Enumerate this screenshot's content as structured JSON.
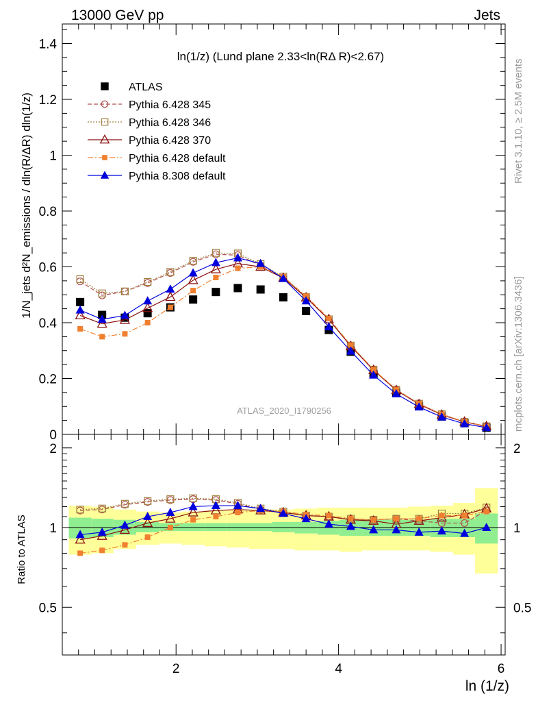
{
  "header": {
    "left": "13000 GeV pp",
    "right": "Jets"
  },
  "side_labels": {
    "rivet": "Rivet 3.1.10, ≥ 2.5M events",
    "mcplots": "mcplots.cern.ch [arXiv:1306.3436]"
  },
  "plot_title": "ln(1/z) (Lund plane 2.33<ln(RΔ R)<2.67)",
  "watermark": "ATLAS_2020_I1790256",
  "ylabel_main": "1/N_jets d²N_emissions / dln(R/ΔR) dln(1/z)",
  "ylabel_ratio": "Ratio to ATLAS",
  "xlabel": "ln (1/z)",
  "legend": [
    {
      "label": "ATLAS",
      "key": "atlas"
    },
    {
      "label": "Pythia 6.428 345",
      "key": "p345"
    },
    {
      "label": "Pythia 6.428 346",
      "key": "p346"
    },
    {
      "label": "Pythia 6.428 370",
      "key": "p370"
    },
    {
      "label": "Pythia 6.428 default",
      "key": "p6def"
    },
    {
      "label": "Pythia 8.308 default",
      "key": "p8def"
    }
  ],
  "colors": {
    "atlas": "#000000",
    "p345": "#b05050",
    "p346": "#a08040",
    "p370": "#8b1010",
    "p6def": "#f08030",
    "p8def": "#0000dd",
    "band_inner": "#90ee90",
    "band_outer": "#ffff99"
  },
  "chart_data": [
    {
      "type": "scatter",
      "panel": "main",
      "xlim": [
        0.6,
        6.05
      ],
      "ylim": [
        0,
        1.47
      ],
      "xticks": [
        2,
        4,
        6
      ],
      "yticks": [
        0,
        0.2,
        0.4,
        0.6,
        0.8,
        1,
        1.2,
        1.4
      ],
      "ytick_labels": [
        "0",
        "0.2",
        "0.4",
        "0.6",
        "0.8",
        "1",
        "1.2",
        "1.4"
      ],
      "x": [
        0.82,
        1.09,
        1.37,
        1.65,
        1.93,
        2.21,
        2.49,
        2.76,
        3.04,
        3.32,
        3.6,
        3.88,
        4.15,
        4.43,
        4.71,
        4.99,
        5.27,
        5.55,
        5.82
      ],
      "series": [
        {
          "name": "ATLAS",
          "key": "atlas",
          "values": [
            0.474,
            0.428,
            0.418,
            0.434,
            0.455,
            0.483,
            0.51,
            0.524,
            0.519,
            0.491,
            0.442,
            0.374,
            0.296,
            0.216,
            0.148,
            0.102,
            0.064,
            0.04,
            0.024
          ]
        },
        {
          "name": "Pythia 6.428 345",
          "key": "p345",
          "values": [
            0.548,
            0.498,
            0.512,
            0.542,
            0.578,
            0.618,
            0.645,
            0.642,
            0.605,
            0.561,
            0.491,
            0.41,
            0.318,
            0.232,
            0.16,
            0.109,
            0.07,
            0.044,
            0.028
          ]
        },
        {
          "name": "Pythia 6.428 346",
          "key": "p346",
          "values": [
            0.556,
            0.505,
            0.512,
            0.546,
            0.582,
            0.622,
            0.65,
            0.648,
            0.61,
            0.565,
            0.492,
            0.412,
            0.318,
            0.232,
            0.16,
            0.11,
            0.072,
            0.045,
            0.029
          ]
        },
        {
          "name": "Pythia 6.428 370",
          "key": "p370",
          "values": [
            0.426,
            0.396,
            0.41,
            0.452,
            0.492,
            0.552,
            0.591,
            0.612,
            0.6,
            0.56,
            0.49,
            0.412,
            0.316,
            0.23,
            0.158,
            0.108,
            0.07,
            0.045,
            0.029
          ]
        },
        {
          "name": "Pythia 6.428 default",
          "key": "p6def",
          "values": [
            0.378,
            0.35,
            0.36,
            0.4,
            0.455,
            0.515,
            0.562,
            0.595,
            0.6,
            0.565,
            0.495,
            0.415,
            0.32,
            0.232,
            0.16,
            0.11,
            0.072,
            0.045,
            0.028
          ]
        },
        {
          "name": "Pythia 8.308 default",
          "key": "p8def",
          "values": [
            0.445,
            0.412,
            0.426,
            0.478,
            0.52,
            0.578,
            0.615,
            0.632,
            0.612,
            0.558,
            0.478,
            0.385,
            0.298,
            0.212,
            0.145,
            0.098,
            0.062,
            0.038,
            0.024
          ]
        }
      ]
    },
    {
      "type": "line",
      "panel": "ratio",
      "xlim": [
        0.6,
        6.05
      ],
      "ylim": [
        0.33,
        2.25
      ],
      "yscale": "log",
      "yticks": [
        0.5,
        1,
        2
      ],
      "ytick_labels": [
        "0.5",
        "1",
        "2"
      ],
      "x": [
        0.82,
        1.09,
        1.37,
        1.65,
        1.93,
        2.21,
        2.49,
        2.76,
        3.04,
        3.32,
        3.6,
        3.88,
        4.15,
        4.43,
        4.71,
        4.99,
        5.27,
        5.55,
        5.82
      ],
      "bins": [
        0.68,
        0.96,
        1.23,
        1.51,
        1.79,
        2.07,
        2.35,
        2.62,
        2.9,
        3.18,
        3.46,
        3.74,
        4.01,
        4.29,
        4.57,
        4.85,
        5.13,
        5.41,
        5.68,
        5.96
      ],
      "band_inner_lo": [
        0.91,
        0.92,
        0.94,
        0.96,
        0.97,
        0.97,
        0.97,
        0.97,
        0.97,
        0.96,
        0.95,
        0.94,
        0.93,
        0.93,
        0.93,
        0.93,
        0.92,
        0.92,
        0.87
      ],
      "band_inner_hi": [
        1.09,
        1.08,
        1.07,
        1.05,
        1.04,
        1.04,
        1.04,
        1.04,
        1.04,
        1.05,
        1.05,
        1.06,
        1.07,
        1.07,
        1.07,
        1.07,
        1.08,
        1.08,
        1.13
      ],
      "band_outer_lo": [
        0.79,
        0.8,
        0.83,
        0.86,
        0.87,
        0.86,
        0.85,
        0.84,
        0.83,
        0.83,
        0.82,
        0.82,
        0.81,
        0.82,
        0.82,
        0.82,
        0.81,
        0.79,
        0.67
      ],
      "band_outer_hi": [
        1.21,
        1.2,
        1.17,
        1.15,
        1.14,
        1.15,
        1.16,
        1.17,
        1.17,
        1.17,
        1.18,
        1.19,
        1.19,
        1.19,
        1.19,
        1.2,
        1.21,
        1.24,
        1.41
      ],
      "series": [
        {
          "name": "Pythia 6.428 345",
          "key": "p345",
          "values": [
            1.16,
            1.17,
            1.22,
            1.25,
            1.27,
            1.28,
            1.27,
            1.23,
            1.17,
            1.14,
            1.11,
            1.1,
            1.07,
            1.07,
            1.08,
            1.06,
            1.04,
            1.04,
            1.16
          ]
        },
        {
          "name": "Pythia 6.428 346",
          "key": "p346",
          "values": [
            1.17,
            1.18,
            1.23,
            1.26,
            1.28,
            1.29,
            1.28,
            1.24,
            1.18,
            1.15,
            1.11,
            1.1,
            1.08,
            1.07,
            1.08,
            1.08,
            1.13,
            1.13,
            1.19
          ]
        },
        {
          "name": "Pythia 6.428 370",
          "key": "p370",
          "values": [
            0.9,
            0.93,
            0.98,
            1.04,
            1.08,
            1.14,
            1.16,
            1.17,
            1.16,
            1.14,
            1.11,
            1.1,
            1.07,
            1.06,
            1.03,
            1.06,
            1.09,
            1.12,
            1.18
          ]
        },
        {
          "name": "Pythia 6.428 default",
          "key": "p6def",
          "values": [
            0.8,
            0.82,
            0.86,
            0.92,
            1.0,
            1.07,
            1.1,
            1.14,
            1.16,
            1.15,
            1.12,
            1.11,
            1.08,
            1.07,
            1.08,
            1.08,
            1.11,
            1.11,
            1.15
          ]
        },
        {
          "name": "Pythia 8.308 default",
          "key": "p8def",
          "values": [
            0.94,
            0.96,
            1.02,
            1.1,
            1.14,
            1.2,
            1.21,
            1.21,
            1.18,
            1.13,
            1.08,
            1.03,
            1.01,
            0.98,
            0.98,
            0.96,
            0.97,
            0.95,
            1.0
          ]
        }
      ]
    }
  ]
}
